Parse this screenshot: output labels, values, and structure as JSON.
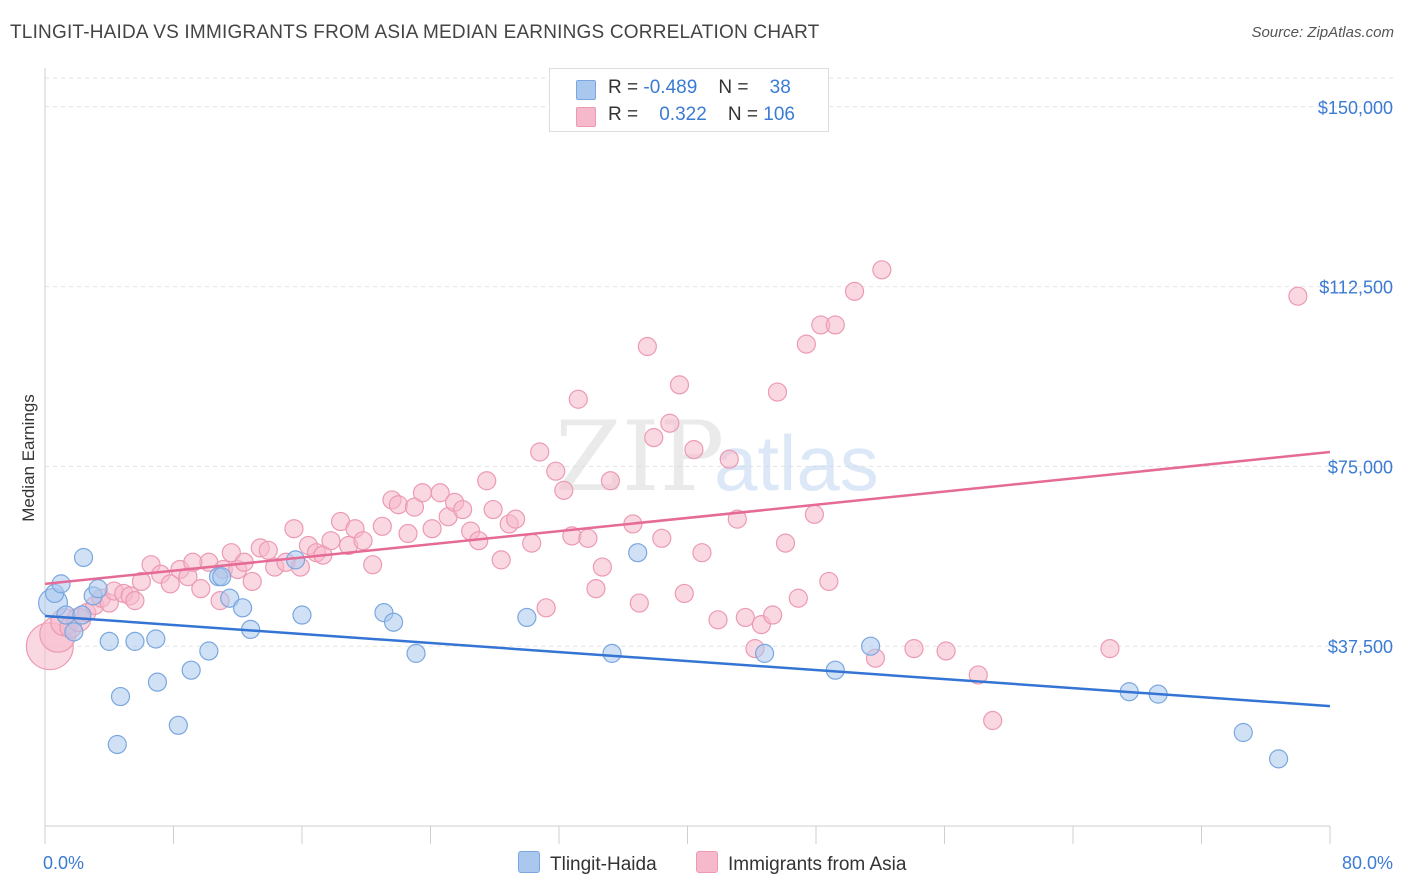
{
  "title": "TLINGIT-HAIDA VS IMMIGRANTS FROM ASIA MEDIAN EARNINGS CORRELATION CHART",
  "source": "Source: ZipAtlas.com",
  "watermark": {
    "zip": "ZIP",
    "atlas": "atlas"
  },
  "legend": {
    "rows": [
      {
        "r_label": "R =",
        "r_value": "-0.489",
        "n_label": "N =",
        "n_value": "38"
      },
      {
        "r_label": "R =",
        "r_value": "0.322",
        "n_label": "N =",
        "n_value": "106"
      }
    ]
  },
  "bottom_legend": [
    "Tlingit-Haida",
    "Immigrants from Asia"
  ],
  "colors": {
    "blue_fill": "#aac8ee",
    "blue_stroke": "#7aa7df",
    "blue_line": "#3474d4",
    "pink_fill": "#f6b8cb",
    "pink_stroke": "#ec9ab3",
    "pink_line": "#e56a96",
    "tick_text": "#3b7bd4",
    "grid": "#e2e2e2"
  },
  "chart_data": {
    "type": "scatter",
    "title": "TLINGIT-HAIDA VS IMMIGRANTS FROM ASIA MEDIAN EARNINGS CORRELATION CHART",
    "xlabel": "",
    "ylabel": "Median Earnings",
    "xlim": [
      0,
      80
    ],
    "ylim": [
      0,
      156000
    ],
    "x_tick_labels": [
      "0.0%",
      "80.0%"
    ],
    "y_ticks": [
      37500,
      75000,
      112500,
      150000
    ],
    "y_tick_labels": [
      "$37,500",
      "$75,000",
      "$112,500",
      "$150,000"
    ],
    "grid": true,
    "series": [
      {
        "name": "Tlingit-Haida",
        "trend": {
          "x": [
            0,
            80
          ],
          "y": [
            43800,
            25000
          ]
        },
        "points": [
          [
            0.5,
            46500,
            1.6
          ],
          [
            0.6,
            48500,
            1.0
          ],
          [
            1.0,
            50500,
            1.0
          ],
          [
            1.3,
            44000,
            1.0
          ],
          [
            1.8,
            40500,
            1.0
          ],
          [
            2.3,
            44000,
            1.0
          ],
          [
            2.4,
            56000,
            1.0
          ],
          [
            3.0,
            48000,
            1.0
          ],
          [
            3.3,
            49500,
            1.0
          ],
          [
            4.0,
            38500,
            1.0
          ],
          [
            4.5,
            17000,
            1.0
          ],
          [
            4.7,
            27000,
            1.0
          ],
          [
            5.6,
            38500,
            1.0
          ],
          [
            6.9,
            39000,
            1.0
          ],
          [
            7.0,
            30000,
            1.0
          ],
          [
            8.3,
            21000,
            1.0
          ],
          [
            9.1,
            32500,
            1.0
          ],
          [
            10.2,
            36500,
            1.0
          ],
          [
            10.8,
            52000,
            1.0
          ],
          [
            11.5,
            47500,
            1.0
          ],
          [
            12.3,
            45500,
            1.0
          ],
          [
            12.8,
            41000,
            1.0
          ],
          [
            15.6,
            55500,
            1.0
          ],
          [
            16.0,
            44000,
            1.0
          ],
          [
            21.1,
            44500,
            1.0
          ],
          [
            21.7,
            42500,
            1.0
          ],
          [
            23.1,
            36000,
            1.0
          ],
          [
            30.0,
            43500,
            1.0
          ],
          [
            35.3,
            36000,
            1.0
          ],
          [
            36.9,
            57000,
            1.0
          ],
          [
            44.8,
            36000,
            1.0
          ],
          [
            49.2,
            32500,
            1.0
          ],
          [
            51.4,
            37500,
            1.0
          ],
          [
            67.5,
            28000,
            1.0
          ],
          [
            69.3,
            27500,
            1.0
          ],
          [
            74.6,
            19500,
            1.0
          ],
          [
            76.8,
            14000,
            1.0
          ],
          [
            11.0,
            52000,
            1.0
          ]
        ]
      },
      {
        "name": "Immigrants from Asia",
        "trend": {
          "x": [
            0,
            80
          ],
          "y": [
            50500,
            78000
          ]
        },
        "points": [
          [
            0.3,
            37500,
            2.6
          ],
          [
            0.8,
            40000,
            2.0
          ],
          [
            1.2,
            42500,
            1.5
          ],
          [
            1.6,
            41500,
            1.2
          ],
          [
            2.1,
            43000,
            1.3
          ],
          [
            2.6,
            44500,
            1.0
          ],
          [
            3.1,
            46000,
            1.0
          ],
          [
            3.5,
            47500,
            1.0
          ],
          [
            4.0,
            46500,
            1.0
          ],
          [
            4.3,
            49000,
            1.0
          ],
          [
            4.9,
            48500,
            1.0
          ],
          [
            5.3,
            48000,
            1.0
          ],
          [
            5.6,
            47000,
            1.0
          ],
          [
            6.0,
            51000,
            1.0
          ],
          [
            6.6,
            54500,
            1.0
          ],
          [
            7.2,
            52500,
            1.0
          ],
          [
            7.8,
            50500,
            1.0
          ],
          [
            8.4,
            53500,
            1.0
          ],
          [
            8.9,
            52000,
            1.0
          ],
          [
            9.7,
            49500,
            1.0
          ],
          [
            10.2,
            55000,
            1.0
          ],
          [
            10.9,
            47000,
            1.0
          ],
          [
            11.1,
            53500,
            1.0
          ],
          [
            11.6,
            57000,
            1.0
          ],
          [
            12.0,
            53500,
            1.0
          ],
          [
            12.4,
            55000,
            1.0
          ],
          [
            12.9,
            51000,
            1.0
          ],
          [
            13.4,
            58000,
            1.0
          ],
          [
            13.9,
            57500,
            1.0
          ],
          [
            14.3,
            54000,
            1.0
          ],
          [
            15.0,
            55000,
            1.0
          ],
          [
            15.5,
            62000,
            1.0
          ],
          [
            15.9,
            54000,
            1.0
          ],
          [
            16.4,
            58500,
            1.0
          ],
          [
            16.9,
            57000,
            1.0
          ],
          [
            17.3,
            56500,
            1.0
          ],
          [
            17.8,
            59500,
            1.0
          ],
          [
            18.4,
            63500,
            1.0
          ],
          [
            18.9,
            58500,
            1.0
          ],
          [
            19.3,
            62000,
            1.0
          ],
          [
            19.8,
            59500,
            1.0
          ],
          [
            20.4,
            54500,
            1.0
          ],
          [
            21.0,
            62500,
            1.0
          ],
          [
            21.6,
            68000,
            1.0
          ],
          [
            22.0,
            67000,
            1.0
          ],
          [
            22.6,
            61000,
            1.0
          ],
          [
            23.0,
            66500,
            1.0
          ],
          [
            23.5,
            69500,
            1.0
          ],
          [
            24.1,
            62000,
            1.0
          ],
          [
            24.6,
            69500,
            1.0
          ],
          [
            25.1,
            64500,
            1.0
          ],
          [
            25.5,
            67500,
            1.0
          ],
          [
            26.0,
            66000,
            1.0
          ],
          [
            26.5,
            61500,
            1.0
          ],
          [
            27.0,
            59500,
            1.0
          ],
          [
            27.5,
            72000,
            1.0
          ],
          [
            27.9,
            66000,
            1.0
          ],
          [
            28.4,
            55500,
            1.0
          ],
          [
            28.9,
            63000,
            1.0
          ],
          [
            29.3,
            64000,
            1.0
          ],
          [
            30.3,
            59000,
            1.0
          ],
          [
            30.8,
            78000,
            1.0
          ],
          [
            31.2,
            45500,
            1.0
          ],
          [
            31.8,
            74000,
            1.0
          ],
          [
            32.3,
            70000,
            1.0
          ],
          [
            32.8,
            60500,
            1.0
          ],
          [
            33.2,
            89000,
            1.0
          ],
          [
            33.8,
            60000,
            1.0
          ],
          [
            34.3,
            49500,
            1.0
          ],
          [
            34.7,
            54000,
            1.0
          ],
          [
            35.2,
            72000,
            1.0
          ],
          [
            36.6,
            63000,
            1.0
          ],
          [
            37.0,
            46500,
            1.0
          ],
          [
            37.5,
            100000,
            1.0
          ],
          [
            37.9,
            81000,
            1.0
          ],
          [
            38.4,
            60000,
            1.0
          ],
          [
            38.9,
            84000,
            1.0
          ],
          [
            39.5,
            92000,
            1.0
          ],
          [
            39.8,
            48500,
            1.0
          ],
          [
            40.4,
            78500,
            1.0
          ],
          [
            40.9,
            57000,
            1.0
          ],
          [
            41.9,
            43000,
            1.0
          ],
          [
            42.6,
            76500,
            1.0
          ],
          [
            43.1,
            64000,
            1.0
          ],
          [
            43.6,
            43500,
            1.0
          ],
          [
            44.2,
            37000,
            1.0
          ],
          [
            44.6,
            42000,
            1.0
          ],
          [
            45.3,
            44000,
            1.0
          ],
          [
            45.6,
            90500,
            1.0
          ],
          [
            46.1,
            59000,
            1.0
          ],
          [
            46.9,
            47500,
            1.0
          ],
          [
            47.4,
            100500,
            1.0
          ],
          [
            47.9,
            65000,
            1.0
          ],
          [
            48.3,
            104500,
            1.0
          ],
          [
            48.8,
            51000,
            1.0
          ],
          [
            49.2,
            104500,
            1.0
          ],
          [
            50.4,
            111500,
            1.0
          ],
          [
            52.1,
            116000,
            1.0
          ],
          [
            51.7,
            35000,
            1.0
          ],
          [
            54.1,
            37000,
            1.0
          ],
          [
            56.1,
            36500,
            1.0
          ],
          [
            58.1,
            31500,
            1.0
          ],
          [
            59.0,
            22000,
            1.0
          ],
          [
            66.3,
            37000,
            1.0
          ],
          [
            78.0,
            110500,
            1.0
          ],
          [
            9.2,
            55000,
            1.0
          ]
        ]
      }
    ]
  }
}
